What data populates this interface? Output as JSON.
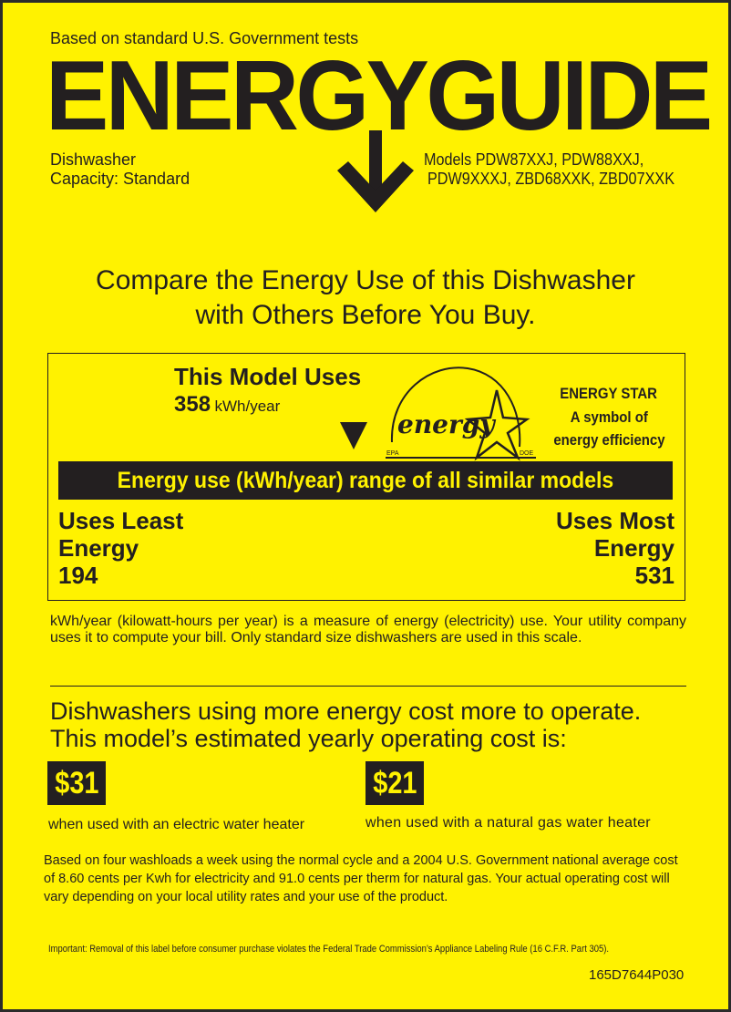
{
  "header": {
    "tests_note": "Based on standard U.S. Government tests",
    "title": "ENERGYGUIDE",
    "appliance": "Dishwasher",
    "capacity": "Capacity: Standard",
    "models_line1": "Models PDW87XXJ, PDW88XXJ,",
    "models_line2": "PDW9XXXJ, ZBD68XXK, ZBD07XXK"
  },
  "compare": {
    "line1": "Compare the Energy Use of this Dishwasher",
    "line2": "with Others Before You Buy."
  },
  "usage": {
    "heading": "This Model Uses",
    "value": "358",
    "unit": "kWh/year",
    "energy_star": {
      "title": "ENERGY STAR",
      "line2": "A symbol of",
      "line3": "energy efficiency",
      "logo_text": "energy",
      "epa": "EPA",
      "doe": "DOE"
    },
    "range_bar": "Energy use (kWh/year) range of all similar models",
    "least_label1": "Uses Least",
    "least_label2": "Energy",
    "least_value": "194",
    "most_label1": "Uses Most",
    "most_label2": "Energy",
    "most_value": "531",
    "range_min": 194,
    "range_max": 531,
    "model_value": 358
  },
  "explanation": "kWh/year (kilowatt-hours per year) is a measure of energy (electricity) use. Your utility company uses it to compute your bill. Only standard size dishwashers are used in this scale.",
  "cost": {
    "heading1": "Dishwashers using more energy cost more to operate.",
    "heading2": "This model’s estimated yearly operating cost is:",
    "electric_cost": "$31",
    "electric_label": "when used with an electric water heater",
    "gas_cost": "$21",
    "gas_label": "when used with a natural gas water heater",
    "basis": "Based on four washloads a week using the normal cycle and a 2004 U.S. Government national average cost of 8.60 cents per Kwh for electricity and 91.0 cents per therm for natural gas. Your actual operating cost will vary depending on your local utility rates and your use of the product."
  },
  "footer": {
    "important": "Important: Removal of this label before consumer purchase violates the Federal Trade Commission’s Appliance Labeling Rule (16 C.F.R. Part 305).",
    "code": "165D7644P030"
  },
  "colors": {
    "background": "#fff200",
    "ink": "#231f20"
  }
}
